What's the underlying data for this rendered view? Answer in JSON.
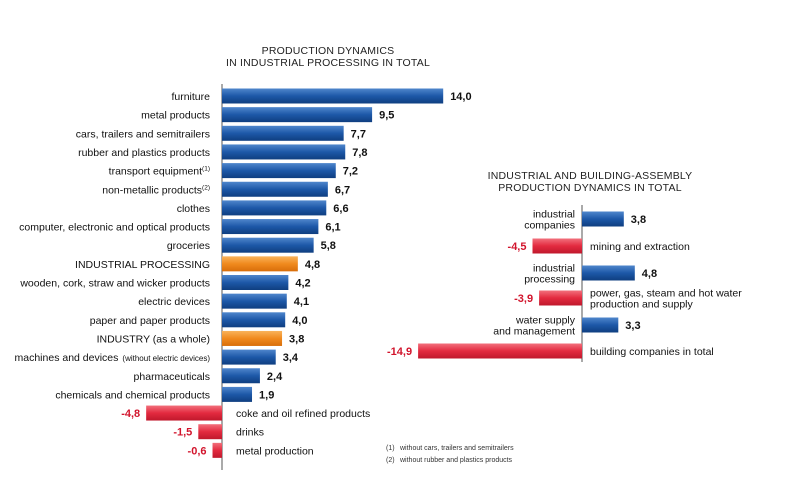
{
  "colors": {
    "positive": "#1d58a8",
    "highlight": "#f08a1e",
    "negative": "#e32a3f"
  },
  "chart_data": [
    {
      "type": "bar",
      "orientation": "horizontal",
      "title": [
        "PRODUCTION DYNAMICS",
        "IN INDUSTRIAL PROCESSING IN TOTAL"
      ],
      "categories": [
        "furniture",
        "metal products",
        "cars, trailers and semitrailers",
        "rubber and plastics products",
        "transport equipment",
        "non-metallic products",
        "clothes",
        "computer, electronic and optical products",
        "groceries",
        "INDUSTRIAL PROCESSING",
        "wooden, cork, straw and wicker products",
        "electric devices",
        "paper and paper products",
        "INDUSTRY (as a whole)",
        "machines and devices",
        "pharmaceuticals",
        "chemicals and chemical products",
        "coke and oil refined products",
        "drinks",
        "metal production"
      ],
      "label_suffix": [
        "",
        "",
        "",
        "",
        "(1)",
        "(2)",
        "",
        "",
        "",
        "",
        "",
        "",
        "",
        "",
        "(without electric devices)",
        "",
        "",
        "",
        "",
        ""
      ],
      "values": [
        14.0,
        9.5,
        7.7,
        7.8,
        7.2,
        6.7,
        6.6,
        6.1,
        5.8,
        4.8,
        4.2,
        4.1,
        4.0,
        3.8,
        3.4,
        2.4,
        1.9,
        -4.8,
        -1.5,
        -0.6
      ],
      "value_labels": [
        "14,0",
        "9,5",
        "7,7",
        "7,8",
        "7,2",
        "6,7",
        "6,6",
        "6,1",
        "5,8",
        "4,8",
        "4,2",
        "4,1",
        "4,0",
        "3,8",
        "3,4",
        "2,4",
        "1,9",
        "-4,8",
        "-1,5",
        "-0,6"
      ],
      "highlight": [
        "INDUSTRIAL PROCESSING",
        "INDUSTRY (as a whole)"
      ]
    },
    {
      "type": "bar",
      "orientation": "horizontal",
      "title": [
        "INDUSTRIAL AND BUILDING-ASSEMBLY",
        "PRODUCTION DYNAMICS IN TOTAL"
      ],
      "categories": [
        [
          "industrial",
          "companies"
        ],
        [
          "mining and extraction"
        ],
        [
          "industrial",
          "processing"
        ],
        [
          "power, gas, steam and hot water",
          "production and supply"
        ],
        [
          "water supply",
          "and management"
        ],
        [
          "building companies in total"
        ]
      ],
      "values": [
        3.8,
        -4.5,
        4.8,
        -3.9,
        3.3,
        -14.9
      ],
      "value_labels": [
        "3,8",
        "-4,5",
        "4,8",
        "-3,9",
        "3,3",
        "-14,9"
      ]
    }
  ],
  "footnotes": [
    {
      "mark": "(1)",
      "text": "without cars, trailers and semitrailers"
    },
    {
      "mark": "(2)",
      "text": "without rubber and plastics products"
    }
  ]
}
